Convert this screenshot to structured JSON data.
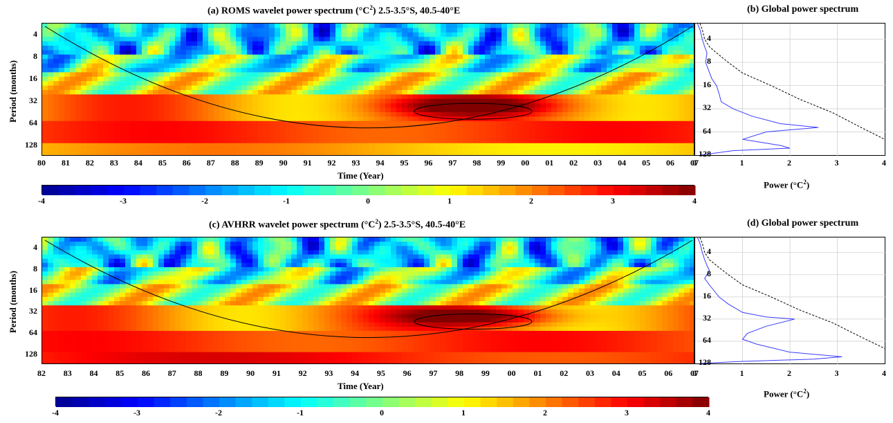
{
  "colors": {
    "colormap": [
      "#00008f",
      "#0000ff",
      "#0080ff",
      "#00ffff",
      "#80ff80",
      "#ffff00",
      "#ff8000",
      "#ff0000",
      "#800000"
    ],
    "global_spectrum_line": "#3b3bff",
    "significance_line": "#000000"
  },
  "chart_data": [
    {
      "type": "heatmap",
      "title": "(a) ROMS wavelet power spectrum (°C²) 2.5-3.5°S, 40.5-40°E",
      "title_main": "(a) ROMS wavelet power spectrum (°C",
      "title_sup": "2",
      "title_rest": ") 2.5-3.5°S, 40.5-40°E",
      "xlabel": "Time (Year)",
      "ylabel": "Period (months)",
      "x_ticks": [
        "80",
        "81",
        "82",
        "83",
        "84",
        "85",
        "86",
        "87",
        "88",
        "89",
        "90",
        "91",
        "92",
        "93",
        "94",
        "95",
        "96",
        "97",
        "98",
        "99",
        "00",
        "01",
        "02",
        "03",
        "04",
        "05",
        "06",
        "07"
      ],
      "y_ticks": [
        "4",
        "8",
        "16",
        "32",
        "64",
        "128"
      ],
      "colorbar_ticks": [
        "-4",
        "-3",
        "-2",
        "-1",
        "0",
        "1",
        "2",
        "3",
        "4"
      ],
      "colorbar_range": [
        -4,
        4
      ],
      "log2_power_scale": true,
      "power_bands_log2": [
        {
          "period": 4,
          "pattern": "mixed blue/cyan with small yellow patches"
        },
        {
          "period": 8,
          "pattern": "mixed cyan/yellow"
        },
        {
          "period": 16,
          "pattern": "orange/yellow with blue patches"
        },
        {
          "period": 32,
          "pattern": "red, dark red max near 97-98",
          "max": 4
        },
        {
          "period": 64,
          "pattern": "red band",
          "value": 3
        },
        {
          "period": 128,
          "pattern": "orange/yellow",
          "value": 1.5
        }
      ]
    },
    {
      "type": "line",
      "title": "(b) Global power spectrum",
      "xlabel": "Power (°C²)",
      "xlabel_main": "Power (°C",
      "xlabel_sup": "2",
      "xlabel_rest": ")",
      "x_ticks": [
        "0",
        "1",
        "2",
        "3",
        "4"
      ],
      "y_ticks": [
        "4",
        "8",
        "16",
        "32",
        "64",
        "128"
      ],
      "xlim": [
        0,
        4
      ],
      "series": [
        {
          "style": "solid blue",
          "x": [
            0.05,
            0.1,
            0.15,
            0.2,
            0.25,
            0.22,
            0.28,
            0.35,
            0.45,
            0.5,
            0.55,
            0.8,
            1.2,
            1.8,
            2.6,
            1.5,
            1.0,
            1.8,
            2.0,
            0.8,
            0.1
          ],
          "y": [
            2.5,
            3,
            4,
            5,
            6,
            8,
            10,
            13,
            16,
            20,
            26,
            32,
            40,
            50,
            56,
            64,
            80,
            96,
            104,
            112,
            128
          ]
        },
        {
          "style": "dashed black",
          "x": [
            0.1,
            0.15,
            0.2,
            0.3,
            0.45,
            0.7,
            1.0,
            1.6,
            2.2,
            2.9,
            3.5,
            4.0
          ],
          "y": [
            2.5,
            3,
            4,
            5,
            6,
            8,
            11,
            16,
            24,
            36,
            56,
            80
          ]
        }
      ]
    },
    {
      "type": "heatmap",
      "title": "(c) AVHRR wavelet power spectrum (°C²) 2.5-3.5°S, 40.5-40°E",
      "title_main": "(c) AVHRR wavelet power spectrum (°C",
      "title_sup": "2",
      "title_rest": ") 2.5-3.5°S, 40.5-40°E",
      "xlabel": "Time (Year)",
      "ylabel": "Period (months)",
      "x_ticks": [
        "82",
        "83",
        "84",
        "85",
        "86",
        "87",
        "88",
        "89",
        "90",
        "91",
        "92",
        "93",
        "94",
        "95",
        "96",
        "97",
        "98",
        "99",
        "00",
        "01",
        "02",
        "03",
        "04",
        "05",
        "06",
        "07"
      ],
      "y_ticks": [
        "4",
        "8",
        "16",
        "32",
        "64",
        "128"
      ],
      "colorbar_ticks": [
        "-4",
        "-3",
        "-2",
        "-1",
        "0",
        "1",
        "2",
        "3",
        "4"
      ],
      "colorbar_range": [
        -4,
        4
      ],
      "log2_power_scale": true,
      "power_bands_log2": [
        {
          "period": 4,
          "pattern": "mixed blue/cyan/yellow"
        },
        {
          "period": 8,
          "pattern": "cyan/blue with yellow"
        },
        {
          "period": 16,
          "pattern": "cyan/yellow/orange"
        },
        {
          "period": 32,
          "pattern": "red with dark red max near 97-98",
          "max": 4
        },
        {
          "period": 64,
          "pattern": "orange/red",
          "value": 2.5
        },
        {
          "period": 128,
          "pattern": "red",
          "value": 3
        }
      ]
    },
    {
      "type": "line",
      "title": "(d) Global power spectrum",
      "xlabel": "Power (°C²)",
      "xlabel_main": "Power (°C",
      "xlabel_sup": "2",
      "xlabel_rest": ")",
      "x_ticks": [
        "0",
        "1",
        "2",
        "3",
        "4"
      ],
      "y_ticks": [
        "4",
        "8",
        "16",
        "32",
        "64",
        "128"
      ],
      "xlim": [
        0,
        4
      ],
      "series": [
        {
          "style": "solid blue",
          "x": [
            0.05,
            0.1,
            0.15,
            0.2,
            0.25,
            0.3,
            0.2,
            0.3,
            0.5,
            0.7,
            1.0,
            1.5,
            2.1,
            1.5,
            1.1,
            1.0,
            1.3,
            2.0,
            3.1,
            2.5,
            1.0,
            0.1
          ],
          "y": [
            2.5,
            3,
            4,
            5,
            6,
            7,
            9,
            11,
            16,
            20,
            26,
            30,
            32,
            40,
            50,
            60,
            70,
            90,
            104,
            112,
            120,
            128
          ]
        },
        {
          "style": "dashed black",
          "x": [
            0.1,
            0.15,
            0.2,
            0.3,
            0.45,
            0.7,
            1.0,
            1.6,
            2.2,
            2.9,
            3.5,
            4.0
          ],
          "y": [
            2.5,
            3,
            4,
            5,
            6,
            8,
            11,
            16,
            24,
            36,
            56,
            80
          ]
        }
      ]
    }
  ]
}
